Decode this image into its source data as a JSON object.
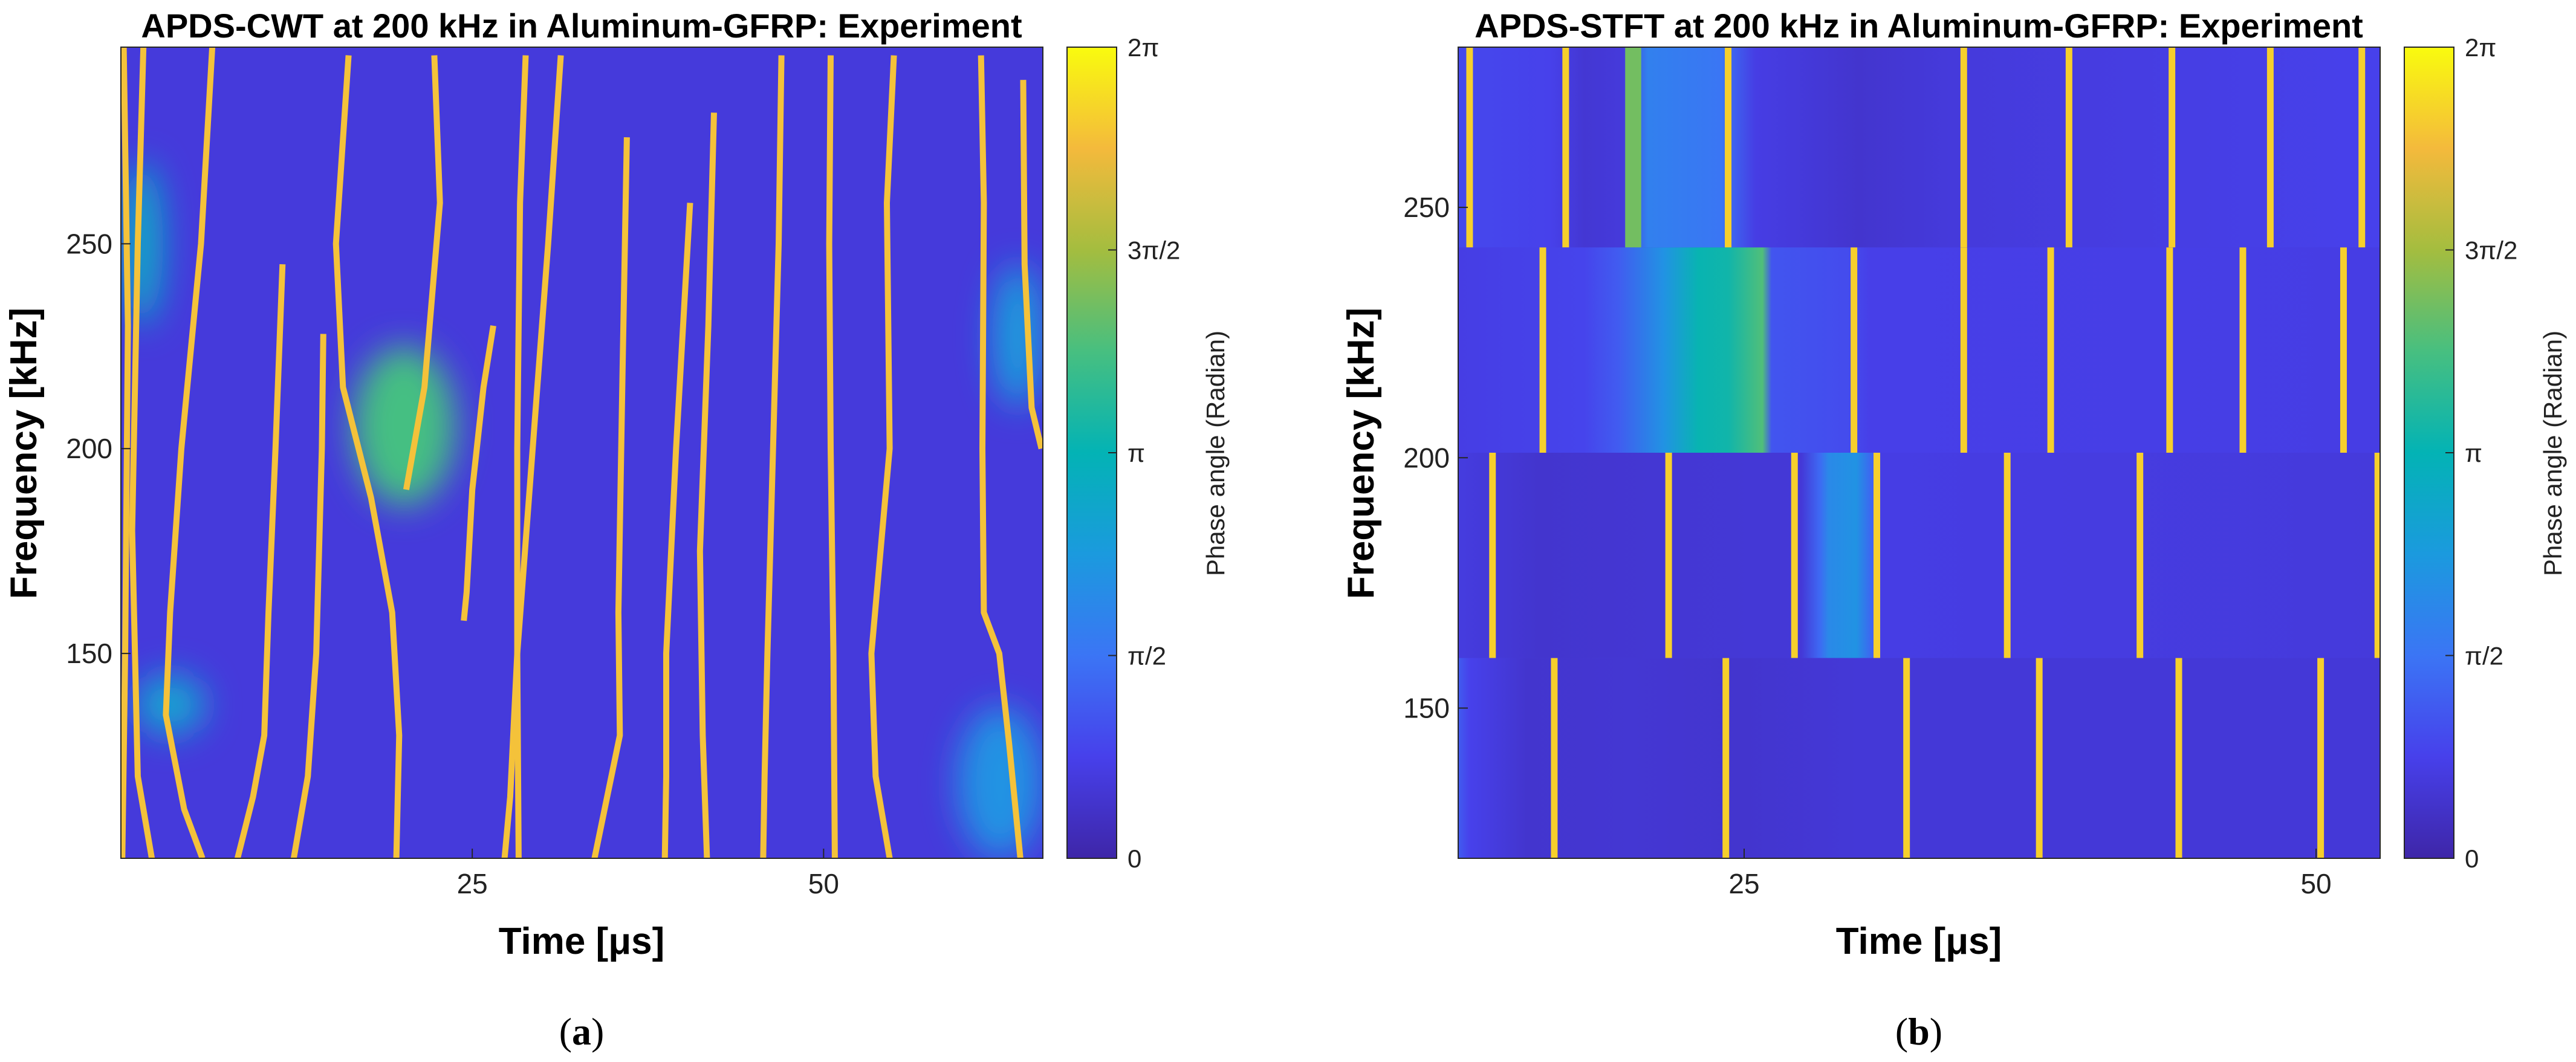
{
  "chart_data": [
    {
      "type": "heatmap",
      "panel": "(a)",
      "panel_letter": "a",
      "title": "APDS-CWT at 200 kHz in Aluminum-GFRP: Experiment",
      "xlabel": "Time [μs]",
      "ylabel": "Frequency [kHz]",
      "xlim": [
        0,
        65.6
      ],
      "ylim": [
        100,
        298
      ],
      "xticks": [
        25,
        50
      ],
      "yticks": [
        150,
        200,
        250
      ],
      "colorbar": {
        "label": "Phase angle (Radian)",
        "range": [
          0,
          6.2832
        ],
        "tick_values": [
          0,
          1.5708,
          3.1416,
          4.7124,
          6.2832
        ],
        "tick_labels": [
          "0",
          "π/2",
          "π",
          "3π/2",
          "2π"
        ]
      },
      "background_phase": 0.6,
      "wrap_lines": [
        {
          "points": [
            [
              0.2,
              298
            ],
            [
              0.5,
              230
            ],
            [
              0.3,
              150
            ],
            [
              0.1,
              100
            ]
          ]
        },
        {
          "points": [
            [
              1.6,
              298
            ],
            [
              1.2,
              250
            ],
            [
              0.8,
              180
            ],
            [
              1.2,
              120
            ],
            [
              2.2,
              100
            ]
          ]
        },
        {
          "points": [
            [
              6.5,
              298
            ],
            [
              5.7,
              250
            ],
            [
              4.3,
              200
            ],
            [
              3.5,
              160
            ],
            [
              3.2,
              135
            ],
            [
              4.5,
              112
            ],
            [
              5.8,
              100
            ]
          ]
        },
        {
          "points": [
            [
              11.5,
              245
            ],
            [
              11.0,
              200
            ],
            [
              10.5,
              160
            ],
            [
              10.2,
              130
            ],
            [
              9.4,
              115
            ],
            [
              8.3,
              100
            ]
          ]
        },
        {
          "points": [
            [
              14.4,
              228
            ],
            [
              14.3,
              200
            ],
            [
              13.9,
              150
            ],
            [
              13.3,
              120
            ],
            [
              12.3,
              100
            ]
          ]
        },
        {
          "points": [
            [
              16.2,
              296
            ],
            [
              15.3,
              250
            ],
            [
              15.8,
              215
            ],
            [
              17.8,
              188
            ],
            [
              19.3,
              160
            ],
            [
              19.8,
              130
            ],
            [
              19.6,
              100
            ]
          ]
        },
        {
          "points": [
            [
              22.3,
              296
            ],
            [
              22.7,
              260
            ],
            [
              21.6,
              215
            ],
            [
              20.3,
              190
            ]
          ]
        },
        {
          "points": [
            [
              26.5,
              230
            ],
            [
              25.8,
              215
            ],
            [
              25.0,
              190
            ],
            [
              24.6,
              165
            ],
            [
              24.4,
              158
            ]
          ]
        },
        {
          "points": [
            [
              28.8,
              296
            ],
            [
              28.4,
              260
            ],
            [
              28.2,
              200
            ],
            [
              28.2,
              150
            ],
            [
              28.3,
              100
            ]
          ]
        },
        {
          "points": [
            [
              31.3,
              296
            ],
            [
              30.4,
              250
            ],
            [
              29.3,
              200
            ],
            [
              28.2,
              150
            ],
            [
              27.7,
              115
            ],
            [
              27.3,
              100
            ]
          ]
        },
        {
          "points": [
            [
              36.0,
              276
            ],
            [
              35.7,
              220
            ],
            [
              35.4,
              160
            ],
            [
              35.5,
              130
            ],
            [
              34.6,
              115
            ],
            [
              33.7,
              100
            ]
          ]
        },
        {
          "points": [
            [
              40.5,
              260
            ],
            [
              39.5,
              200
            ],
            [
              38.8,
              150
            ],
            [
              38.8,
              120
            ],
            [
              38.7,
              100
            ]
          ]
        },
        {
          "points": [
            [
              42.2,
              282
            ],
            [
              41.8,
              230
            ],
            [
              41.2,
              175
            ],
            [
              41.4,
              130
            ],
            [
              41.7,
              100
            ]
          ]
        },
        {
          "points": [
            [
              47.0,
              296
            ],
            [
              46.8,
              250
            ],
            [
              46.4,
              200
            ],
            [
              46.0,
              150
            ],
            [
              45.8,
              120
            ],
            [
              45.7,
              100
            ]
          ]
        },
        {
          "points": [
            [
              50.5,
              296
            ],
            [
              50.4,
              250
            ],
            [
              50.5,
              200
            ],
            [
              50.7,
              150
            ],
            [
              50.8,
              100
            ]
          ]
        },
        {
          "points": [
            [
              55.0,
              296
            ],
            [
              54.5,
              260
            ],
            [
              54.7,
              200
            ],
            [
              53.4,
              150
            ],
            [
              53.7,
              120
            ],
            [
              54.7,
              100
            ]
          ]
        },
        {
          "points": [
            [
              61.2,
              296
            ],
            [
              61.4,
              260
            ],
            [
              61.3,
              200
            ],
            [
              61.4,
              160
            ],
            [
              62.5,
              150
            ],
            [
              63.2,
              128
            ],
            [
              64.0,
              100
            ]
          ]
        },
        {
          "points": [
            [
              64.2,
              290
            ],
            [
              64.3,
              245
            ],
            [
              64.8,
              210
            ],
            [
              65.5,
              200
            ]
          ]
        }
      ],
      "colored_regions": [
        {
          "x": [
            16.5,
            23.8
          ],
          "y": [
            186,
            225
          ],
          "phase": 3.9
        },
        {
          "x": [
            0,
            3
          ],
          "y": [
            230,
            270
          ],
          "phase": 2.8
        },
        {
          "x": [
            59.5,
            65.6
          ],
          "y": [
            100,
            137
          ],
          "phase": 2.2
        },
        {
          "x": [
            62,
            65.6
          ],
          "y": [
            210,
            245
          ],
          "phase": 2.4
        },
        {
          "x": [
            1,
            6
          ],
          "y": [
            130,
            145
          ],
          "phase": 2.6
        }
      ]
    },
    {
      "type": "heatmap",
      "panel": "(b)",
      "panel_letter": "b",
      "title": "APDS-STFT at 200 kHz in Aluminum-GFRP: Experiment",
      "xlabel": "Time [μs]",
      "ylabel": "Frequency [kHz]",
      "xlim": [
        12.5,
        52.8
      ],
      "ylim": [
        120,
        282
      ],
      "xticks": [
        25,
        50
      ],
      "yticks": [
        150,
        200,
        250
      ],
      "colorbar": {
        "label": "Phase angle (Radian)",
        "range": [
          0,
          6.2832
        ],
        "tick_values": [
          0,
          1.5708,
          3.1416,
          4.7124,
          6.2832
        ],
        "tick_labels": [
          "0",
          "π/2",
          "π",
          "3π/2",
          "2π"
        ]
      },
      "bands": [
        {
          "y": [
            242,
            282
          ],
          "base_phase": 0.85,
          "wrap_times": [
            13.0,
            17.2,
            24.3,
            34.6,
            39.2,
            43.7,
            48.0,
            52.0
          ],
          "warm_segments": [
            {
              "x": [
                19.8,
                20.5
              ],
              "phase": 4.3
            }
          ],
          "gradient_stops": [
            [
              12.5,
              0.9
            ],
            [
              16.5,
              0.8
            ],
            [
              18.0,
              0.5
            ],
            [
              19.7,
              0.6
            ],
            [
              20.8,
              1.8
            ],
            [
              24.0,
              1.6
            ],
            [
              25.5,
              0.7
            ],
            [
              30.0,
              0.45
            ],
            [
              34.0,
              0.6
            ],
            [
              52.8,
              0.8
            ]
          ]
        },
        {
          "y": [
            201,
            242
          ],
          "base_phase": 0.7,
          "wrap_times": [
            16.2,
            29.8,
            34.6,
            38.4,
            43.6,
            46.8,
            51.2
          ],
          "warm_segments": [],
          "gradient_stops": [
            [
              12.5,
              0.7
            ],
            [
              18.0,
              0.85
            ],
            [
              19.5,
              1.2
            ],
            [
              21.5,
              2.2
            ],
            [
              23.0,
              3.2
            ],
            [
              24.3,
              3.3
            ],
            [
              25.8,
              4.0
            ],
            [
              26.2,
              1.1
            ],
            [
              29.7,
              0.95
            ],
            [
              30.5,
              0.75
            ],
            [
              52.8,
              0.7
            ]
          ]
        },
        {
          "y": [
            160,
            201
          ],
          "base_phase": 0.55,
          "wrap_times": [
            14.0,
            21.7,
            27.2,
            30.8,
            36.5,
            42.3,
            52.7
          ],
          "warm_segments": [],
          "gradient_stops": [
            [
              12.5,
              0.65
            ],
            [
              16.0,
              0.45
            ],
            [
              21.0,
              0.5
            ],
            [
              27.5,
              0.55
            ],
            [
              28.3,
              1.4
            ],
            [
              28.7,
              2.0
            ],
            [
              29.9,
              2.2
            ],
            [
              30.6,
              1.3
            ],
            [
              31.0,
              0.7
            ],
            [
              52.8,
              0.6
            ]
          ]
        },
        {
          "y": [
            120,
            160
          ],
          "base_phase": 0.55,
          "wrap_times": [
            16.7,
            24.2,
            32.1,
            37.9,
            44.0,
            50.2
          ],
          "warm_segments": [],
          "gradient_stops": [
            [
              12.5,
              1.2
            ],
            [
              13.0,
              0.8
            ],
            [
              15.5,
              0.45
            ],
            [
              20.0,
              0.5
            ],
            [
              25.0,
              0.45
            ],
            [
              30.0,
              0.55
            ],
            [
              52.8,
              0.55
            ]
          ]
        }
      ]
    }
  ]
}
